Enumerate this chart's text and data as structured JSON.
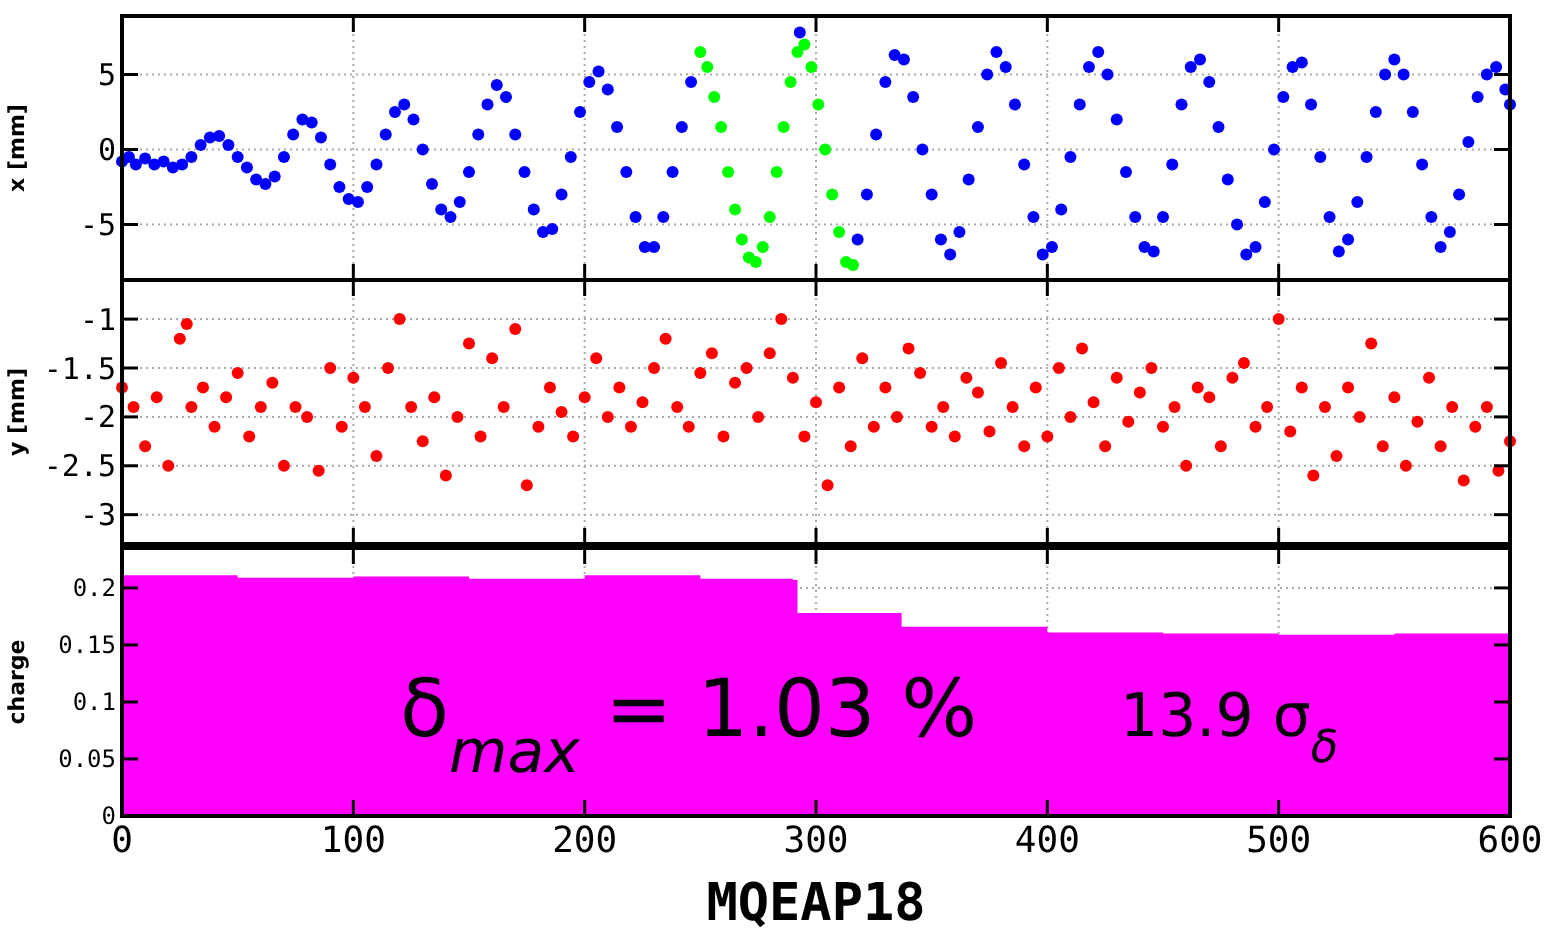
{
  "chart_data": [
    {
      "type": "scatter",
      "ylabel": "x [mm]",
      "xlim": [
        0,
        600
      ],
      "xticks": [
        0,
        100,
        200,
        300,
        400,
        500,
        600
      ],
      "ylim": [
        -8.7,
        8.9
      ],
      "yticks": [
        -5,
        0,
        5
      ],
      "grid": true,
      "marker": "circle",
      "tick_labels": "y",
      "series": [
        {
          "color": "#0000ff",
          "x": [
            0,
            3,
            6,
            10,
            14,
            18,
            22,
            26,
            30,
            34,
            38,
            42,
            46,
            50,
            54,
            58,
            62,
            66,
            70,
            74,
            78,
            82,
            86,
            90,
            94,
            98,
            102,
            106,
            110,
            114,
            118,
            122,
            126,
            130,
            134,
            138,
            142,
            146,
            150,
            154,
            158,
            162,
            166,
            170,
            174,
            178,
            182,
            186,
            190,
            194,
            198,
            202,
            206,
            210,
            214,
            218,
            222,
            226,
            230,
            234,
            238,
            242,
            246,
            293,
            318,
            322,
            326,
            330,
            334,
            338,
            342,
            346,
            350,
            354,
            358,
            362,
            366,
            370,
            374,
            378,
            382,
            386,
            390,
            394,
            398,
            402,
            406,
            410,
            414,
            418,
            422,
            426,
            430,
            434,
            438,
            442,
            446,
            450,
            454,
            458,
            462,
            466,
            470,
            474,
            478,
            482,
            486,
            490,
            494,
            498,
            502,
            506,
            510,
            514,
            518,
            522,
            526,
            530,
            534,
            538,
            542,
            546,
            550,
            554,
            558,
            562,
            566,
            570,
            574,
            578,
            582,
            586,
            590,
            594,
            598,
            600
          ],
          "values": [
            -0.8,
            -0.5,
            -1,
            -0.6,
            -1,
            -0.8,
            -1.2,
            -1,
            -0.5,
            0.3,
            0.8,
            0.9,
            0.3,
            -0.5,
            -1.2,
            -2,
            -2.3,
            -1.8,
            -0.5,
            1,
            2,
            1.8,
            0.8,
            -1,
            -2.5,
            -3.3,
            -3.5,
            -2.5,
            -1,
            1,
            2.5,
            3,
            2,
            0,
            -2.3,
            -4,
            -4.5,
            -3.5,
            -1.5,
            1,
            3,
            4.3,
            3.5,
            1,
            -1.5,
            -4,
            -5.5,
            -5.3,
            -3,
            -0.5,
            2.5,
            4.5,
            5.2,
            4,
            1.5,
            -1.5,
            -4.5,
            -6.5,
            -6.5,
            -4.5,
            -1.5,
            1.5,
            4.5,
            7.8,
            -6,
            -3,
            1,
            4.5,
            6.3,
            6,
            3.5,
            0,
            -3,
            -6,
            -7,
            -5.5,
            -2,
            1.5,
            5,
            6.5,
            5.5,
            3,
            -1,
            -4.5,
            -7,
            -6.5,
            -4,
            -0.5,
            3,
            5.5,
            6.5,
            5,
            2,
            -1.5,
            -4.5,
            -6.5,
            -6.8,
            -4.5,
            -1,
            3,
            5.5,
            6,
            4.5,
            1.5,
            -2,
            -5,
            -7,
            -6.5,
            -3.5,
            0,
            3.5,
            5.5,
            5.8,
            3,
            -0.5,
            -4.5,
            -6.8,
            -6,
            -3.5,
            -0.5,
            2.5,
            5,
            6,
            5,
            2.5,
            -1,
            -4.5,
            -6.5,
            -5.5,
            -3,
            0.5,
            3.5,
            5,
            5.5,
            4,
            3
          ]
        },
        {
          "color": "#00ff00",
          "x": [
            250,
            253,
            256,
            259,
            262,
            265,
            268,
            271,
            274,
            277,
            280,
            283,
            286,
            289,
            292,
            295,
            298,
            301,
            304,
            307,
            310,
            313,
            316
          ],
          "values": [
            6.5,
            5.5,
            3.5,
            1.5,
            -1.5,
            -4,
            -6,
            -7.2,
            -7.5,
            -6.5,
            -4.5,
            -1.5,
            1.5,
            4.5,
            6.5,
            7,
            5.5,
            3,
            0,
            -3,
            -5.5,
            -7.5,
            -7.7
          ]
        }
      ]
    },
    {
      "type": "scatter",
      "ylabel": "y [mm]",
      "xlim": [
        0,
        600
      ],
      "xticks": [
        0,
        100,
        200,
        300,
        400,
        500,
        600
      ],
      "ylim": [
        -3.3,
        -0.6
      ],
      "yticks": [
        -3,
        -2.5,
        -2,
        -1.5,
        -1
      ],
      "grid": true,
      "marker": "circle",
      "tick_labels": "y",
      "series": [
        {
          "color": "#ff0000",
          "x": [
            0,
            5,
            10,
            15,
            20,
            25,
            28,
            30,
            35,
            40,
            45,
            50,
            55,
            60,
            65,
            70,
            75,
            80,
            85,
            90,
            95,
            100,
            105,
            110,
            115,
            120,
            125,
            130,
            135,
            140,
            145,
            150,
            155,
            160,
            165,
            170,
            175,
            180,
            185,
            190,
            195,
            200,
            205,
            210,
            215,
            220,
            225,
            230,
            235,
            240,
            245,
            250,
            255,
            260,
            265,
            270,
            275,
            280,
            285,
            290,
            295,
            300,
            305,
            310,
            315,
            320,
            325,
            330,
            335,
            340,
            345,
            350,
            355,
            360,
            365,
            370,
            375,
            380,
            385,
            390,
            395,
            400,
            405,
            410,
            415,
            420,
            425,
            430,
            435,
            440,
            445,
            450,
            455,
            460,
            465,
            470,
            475,
            480,
            485,
            490,
            495,
            500,
            505,
            510,
            515,
            520,
            525,
            530,
            535,
            540,
            545,
            550,
            555,
            560,
            565,
            570,
            575,
            580,
            585,
            590,
            595,
            600
          ],
          "values": [
            -1.7,
            -1.9,
            -2.3,
            -1.8,
            -2.5,
            -1.2,
            -1.05,
            -1.9,
            -1.7,
            -2.1,
            -1.8,
            -1.55,
            -2.2,
            -1.9,
            -1.65,
            -2.5,
            -1.9,
            -2.0,
            -2.55,
            -1.5,
            -2.1,
            -1.6,
            -1.9,
            -2.4,
            -1.5,
            -1.0,
            -1.9,
            -2.25,
            -1.8,
            -2.6,
            -2.0,
            -1.25,
            -2.2,
            -1.4,
            -1.9,
            -1.1,
            -2.7,
            -2.1,
            -1.7,
            -1.95,
            -2.2,
            -1.8,
            -1.4,
            -2.0,
            -1.7,
            -2.1,
            -1.85,
            -1.5,
            -1.2,
            -1.9,
            -2.1,
            -1.55,
            -1.35,
            -2.2,
            -1.65,
            -1.5,
            -2.0,
            -1.35,
            -1.0,
            -1.6,
            -2.2,
            -1.85,
            -2.7,
            -1.7,
            -2.3,
            -1.4,
            -2.1,
            -1.7,
            -2.0,
            -1.3,
            -1.55,
            -2.1,
            -1.9,
            -2.2,
            -1.6,
            -1.75,
            -2.15,
            -1.45,
            -1.9,
            -2.3,
            -1.7,
            -2.2,
            -1.5,
            -2.0,
            -1.3,
            -1.85,
            -2.3,
            -1.6,
            -2.05,
            -1.75,
            -1.5,
            -2.1,
            -1.9,
            -2.5,
            -1.7,
            -1.8,
            -2.3,
            -1.6,
            -1.45,
            -2.1,
            -1.9,
            -1.0,
            -2.15,
            -1.7,
            -2.6,
            -1.9,
            -2.4,
            -1.7,
            -2.0,
            -1.25,
            -2.3,
            -1.8,
            -2.5,
            -2.05,
            -1.6,
            -2.3,
            -1.9,
            -2.65,
            -2.1,
            -1.9,
            -2.55,
            -2.25
          ]
        }
      ]
    },
    {
      "type": "area",
      "ylabel": "charge",
      "xlabel": "MQEAP18",
      "xlim": [
        0,
        600
      ],
      "xticks": [
        0,
        100,
        200,
        300,
        400,
        500,
        600
      ],
      "ylim": [
        0,
        0.235
      ],
      "yticks": [
        0,
        0.05,
        0.1,
        0.15,
        0.2
      ],
      "grid": true,
      "annotations": [
        "δ$_{max}$ = 1.03 %",
        "13.9 σ$_{δ}$"
      ],
      "series": [
        {
          "color": "#ff00ff",
          "x": [
            0,
            50,
            100,
            150,
            200,
            250,
            290,
            292,
            335,
            337,
            400,
            450,
            500,
            550,
            600
          ],
          "values": [
            0.211,
            0.209,
            0.21,
            0.208,
            0.211,
            0.208,
            0.207,
            0.178,
            0.178,
            0.166,
            0.161,
            0.16,
            0.159,
            0.16,
            0.158
          ]
        }
      ]
    }
  ]
}
